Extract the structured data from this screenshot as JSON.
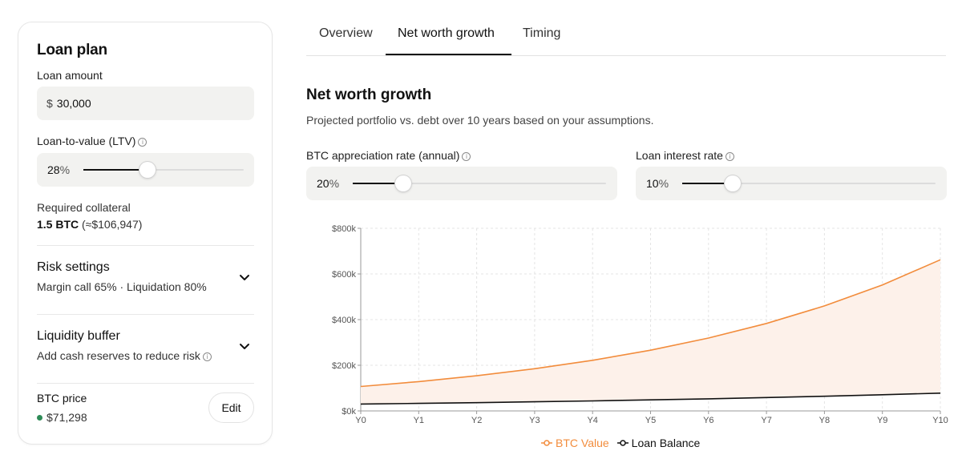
{
  "sidebar": {
    "title": "Loan plan",
    "loan_amount": {
      "label": "Loan amount",
      "currency": "$",
      "value": "30,000"
    },
    "ltv": {
      "label": "Loan-to-value (LTV)",
      "value": "28",
      "unit": "%",
      "fraction": 0.28
    },
    "collateral": {
      "label": "Required collateral",
      "btc": "1.5 BTC",
      "usd": "(≈$106,947)"
    },
    "risk": {
      "title": "Risk settings",
      "subtitle": "Margin call 65% · Liquidation 80%"
    },
    "liquidity": {
      "title": "Liquidity buffer",
      "subtitle": "Add cash reserves to reduce risk"
    },
    "price": {
      "label": "BTC price",
      "value": "$71,298",
      "edit_label": "Edit"
    }
  },
  "tabs": [
    {
      "label": "Overview",
      "active": false
    },
    {
      "label": "Net worth growth",
      "active": true
    },
    {
      "label": "Timing",
      "active": false
    }
  ],
  "main": {
    "title": "Net worth growth",
    "subtitle": "Projected portfolio vs. debt over 10 years based on your assumptions.",
    "btc_rate": {
      "label": "BTC appreciation rate (annual)",
      "value": "20",
      "unit": "%",
      "fraction": 0.2
    },
    "loan_rate": {
      "label": "Loan interest rate",
      "value": "10",
      "unit": "%",
      "fraction": 0.1
    }
  },
  "colors": {
    "btc": "#f28c3c",
    "btc_fill": "#fdf1ea",
    "loan": "#111111",
    "price_dot": "#2e8b57"
  },
  "chart_data": {
    "type": "area",
    "x": [
      "Y0",
      "Y1",
      "Y2",
      "Y3",
      "Y4",
      "Y5",
      "Y6",
      "Y7",
      "Y8",
      "Y9",
      "Y10"
    ],
    "ylim": [
      0,
      800000
    ],
    "yticks": [
      0,
      200000,
      400000,
      600000,
      800000
    ],
    "ytick_labels": [
      "$0k",
      "$200k",
      "$400k",
      "$600k",
      "$800k"
    ],
    "grid": true,
    "legend_position": "bottom-center",
    "series": [
      {
        "name": "BTC Value",
        "values": [
          106947,
          128336,
          154004,
          184804,
          221765,
          266118,
          319342,
          383210,
          459852,
          551822,
          662187
        ]
      },
      {
        "name": "Loan Balance",
        "values": [
          30000,
          33000,
          36300,
          39930,
          43923,
          48315,
          53147,
          58462,
          64308,
          70738,
          77812
        ]
      }
    ]
  }
}
